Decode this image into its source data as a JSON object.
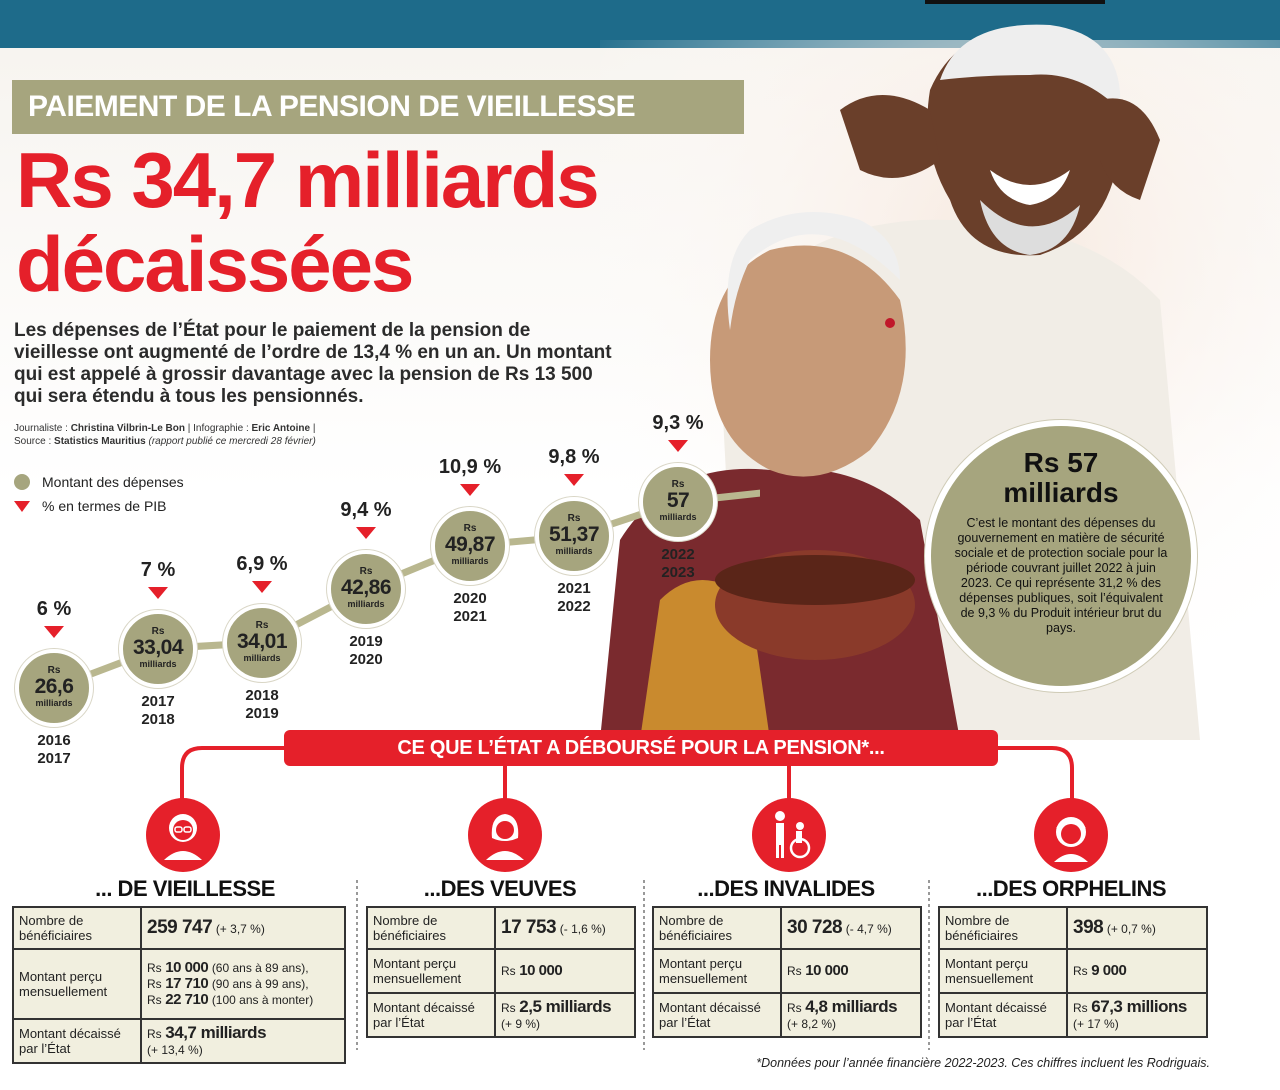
{
  "kicker": "PAIEMENT DE LA PENSION DE VIEILLESSE",
  "headline": {
    "line1": "Rs 34,7 milliards",
    "line2": "décaissées"
  },
  "lede": "Les dépenses de l’État pour le paiement de la pension de vieillesse ont augmenté de l’ordre de 13,4 % en un an. Un montant qui est appelé à grossir davantage avec la pension de Rs 13 500 qui sera étendu à tous les pensionnés.",
  "credits": {
    "journalist_label": "Journaliste : ",
    "journalist": "Christina Vilbrin-Le Bon",
    "infographic_label": " | Infographie : ",
    "infographic": "Eric Antoine",
    "sep": " |",
    "source_label": "Source : ",
    "source": "Statistics Mauritius",
    "source_note": " (rapport publié ce mercredi 28 février)"
  },
  "legend": {
    "spend": "Montant des dépenses",
    "gdp": "% en termes de PIB"
  },
  "colors": {
    "accent": "#e5202a",
    "olive": "#a6a57e",
    "topbar": "#1e6b8a"
  },
  "chart_data": {
    "type": "line",
    "categories": [
      "2016 2017",
      "2017 2018",
      "2018 2019",
      "2019 2020",
      "2020 2021",
      "2021 2022",
      "2022 2023"
    ],
    "series": [
      {
        "name": "Montant des dépenses",
        "values": [
          26.6,
          33.04,
          34.01,
          42.86,
          49.87,
          51.37,
          57
        ]
      },
      {
        "name": "% en termes de PIB",
        "values": [
          6,
          7,
          6.9,
          9.4,
          10.9,
          9.8,
          9.3
        ]
      }
    ],
    "labels": {
      "amount": [
        "26,6",
        "33,04",
        "34,01",
        "42,86",
        "49,87",
        "51,37",
        "57"
      ],
      "pct": [
        "6 %",
        "7 %",
        "6,9 %",
        "9,4 %",
        "10,9 %",
        "9,8 %",
        "9,3 %"
      ],
      "year_top": [
        "2016",
        "2017",
        "2018",
        "2019",
        "2020",
        "2021",
        "2022"
      ],
      "year_bottom": [
        "2017",
        "2018",
        "2019",
        "2020",
        "2021",
        "2022",
        "2023"
      ],
      "rs": "Rs",
      "unit": "milliards"
    }
  },
  "side_circle": {
    "title_line1": "Rs 57",
    "title_line2": "milliards",
    "body": "C’est le montant des dépenses du gouvernement en matière de sécurité sociale et de protection sociale pour la période couvrant juillet 2022 à juin 2023. Ce qui représente 31,2 % des dépenses publiques, soit l’équivalent de 9,3 % du Produit intérieur brut du pays."
  },
  "banner": "CE QUE L’ÉTAT A DÉBOURSÉ POUR LA PENSION*...",
  "row_labels": {
    "beneficiaries": "Nombre de bénéficiaires",
    "monthly": "Montant perçu mensuellement",
    "disbursed": "Montant décaissé par l’État"
  },
  "pensions": [
    {
      "title": "... DE VIEILLESSE",
      "icon": "elderly-woman-icon",
      "beneficiaries": "259 747",
      "beneficiaries_change": "(+ 3,7 %)",
      "monthly_lines": [
        {
          "amount": "10 000",
          "note": "(60 ans à 89 ans),"
        },
        {
          "amount": "17 710",
          "note": "(90 ans à 99 ans),"
        },
        {
          "amount": "22 710",
          "note": "(100 ans à monter)"
        }
      ],
      "disbursed": "34,7 milliards",
      "disbursed_change": "(+ 13,4 %)"
    },
    {
      "title": "...DES VEUVES",
      "icon": "widow-icon",
      "beneficiaries": "17 753",
      "beneficiaries_change": "(- 1,6 %)",
      "monthly_lines": [
        {
          "amount": "10 000",
          "note": ""
        }
      ],
      "disbursed": "2,5 milliards",
      "disbursed_change": "(+ 9 %)"
    },
    {
      "title": "...DES INVALIDES",
      "icon": "wheelchair-icon",
      "beneficiaries": "30 728",
      "beneficiaries_change": "(- 4,7 %)",
      "monthly_lines": [
        {
          "amount": "10 000",
          "note": ""
        }
      ],
      "disbursed": "4,8 milliards",
      "disbursed_change": "(+ 8,2 %)"
    },
    {
      "title": "...DES ORPHELINS",
      "icon": "orphan-child-icon",
      "beneficiaries": "398",
      "beneficiaries_change": "(+ 0,7 %)",
      "monthly_lines": [
        {
          "amount": "9 000",
          "note": ""
        }
      ],
      "disbursed": "67,3 millions",
      "disbursed_change": "(+ 17 %)"
    }
  ],
  "rs": "Rs",
  "footnote": "*Données pour l’année financière 2022-2023. Ces chiffres incluent les Rodriguais."
}
